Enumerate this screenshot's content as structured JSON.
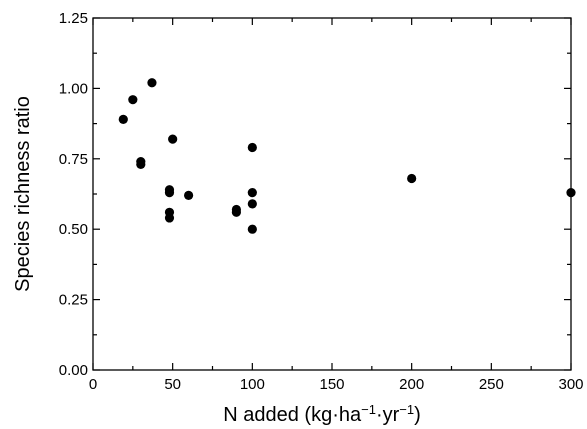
{
  "chart_data": {
    "type": "scatter",
    "xlabel_parts": [
      "N added (kg·ha",
      "−1",
      "·yr",
      "−1",
      ")"
    ],
    "ylabel": "Species richness ratio",
    "xlim": [
      0,
      300
    ],
    "ylim": [
      0,
      1.25
    ],
    "x_ticks": [
      0,
      50,
      100,
      150,
      200,
      250,
      300
    ],
    "y_ticks": [
      0.0,
      0.25,
      0.5,
      0.75,
      1.0,
      1.25
    ],
    "x_tick_labels": [
      "0",
      "50",
      "100",
      "150",
      "200",
      "250",
      "300"
    ],
    "y_tick_labels": [
      "0.00",
      "0.25",
      "0.50",
      "0.75",
      "1.00",
      "1.25"
    ],
    "grid": false,
    "marker_color": "#000000",
    "points": [
      {
        "x": 19,
        "y": 0.89
      },
      {
        "x": 25,
        "y": 0.96
      },
      {
        "x": 30,
        "y": 0.74
      },
      {
        "x": 30,
        "y": 0.73
      },
      {
        "x": 37,
        "y": 1.02
      },
      {
        "x": 48,
        "y": 0.64
      },
      {
        "x": 48,
        "y": 0.63
      },
      {
        "x": 48,
        "y": 0.56
      },
      {
        "x": 48,
        "y": 0.54
      },
      {
        "x": 50,
        "y": 0.82
      },
      {
        "x": 60,
        "y": 0.62
      },
      {
        "x": 90,
        "y": 0.57
      },
      {
        "x": 90,
        "y": 0.56
      },
      {
        "x": 100,
        "y": 0.79
      },
      {
        "x": 100,
        "y": 0.63
      },
      {
        "x": 100,
        "y": 0.59
      },
      {
        "x": 100,
        "y": 0.5
      },
      {
        "x": 200,
        "y": 0.68
      },
      {
        "x": 300,
        "y": 0.63
      }
    ]
  }
}
